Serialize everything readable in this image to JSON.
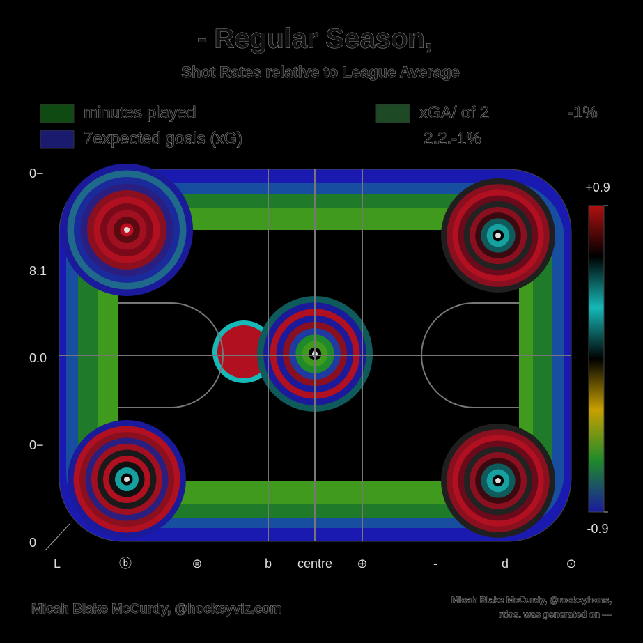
{
  "chart_data": {
    "type": "heatmap",
    "title": "- Regular Season,",
    "subtitle": "Shot Rates relative to League Average",
    "legend": [
      {
        "name": "minutes played",
        "color": "#0f4a12"
      },
      {
        "name": "7expected goals (xG)",
        "color": "#1a1a6e"
      },
      {
        "name": "xGA/ of 2",
        "color": "#1d4a25"
      }
    ],
    "legend_notes": [
      "-1%",
      "2.2.-1%"
    ],
    "y_labels": [
      "0−",
      "8.1",
      "0.0",
      "0−",
      "0"
    ],
    "x_labels": [
      "L",
      "ⓑ",
      "⊜",
      "b",
      "centre",
      "⊕",
      "-",
      "d",
      "⊙"
    ],
    "clim": [
      -0.9,
      0.9
    ],
    "cticks": [
      {
        "value": 0.9,
        "label": "+0.9"
      },
      -0.9
    ],
    "colors": [
      "#1a1aa0",
      "#1e8a2a",
      "#c8a000",
      "#000000",
      "#16b8b8",
      "#000000",
      "#b01010"
    ],
    "credit_left": "Micah Blake McCurdy, @hockeyviz.com",
    "credit_right": [
      "Micah Blake McCurdy, @rockeyhons,",
      "rtios. was generated on —"
    ]
  }
}
